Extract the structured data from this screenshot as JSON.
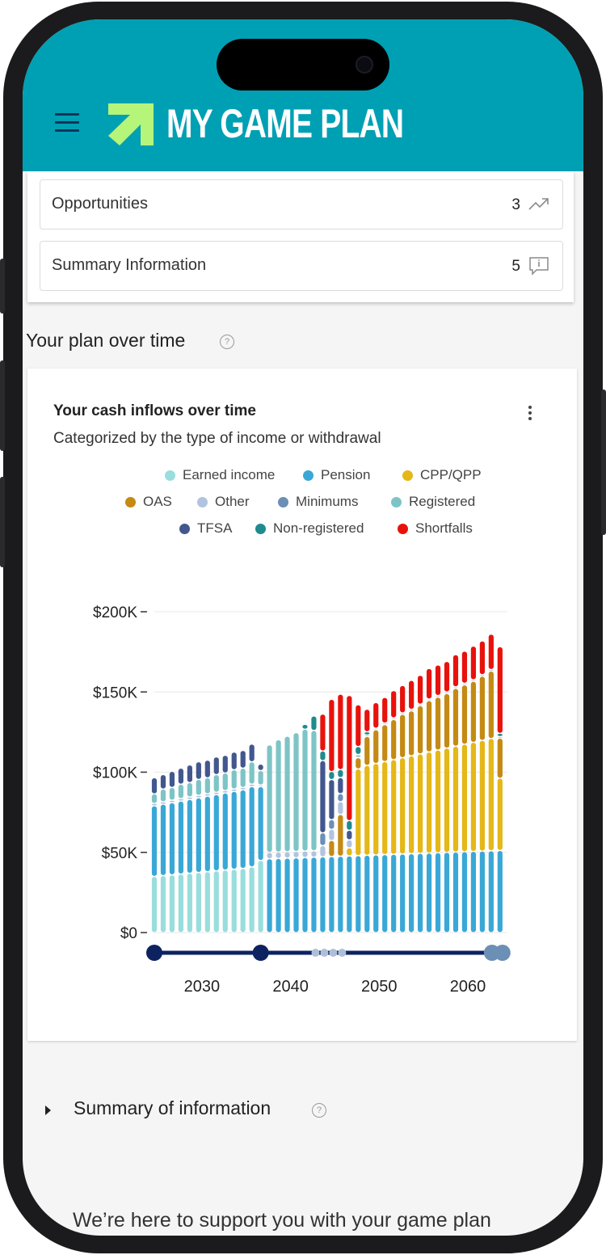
{
  "app": {
    "title": "MY GAME PLAN"
  },
  "top_card": {
    "rows": [
      {
        "label": "Opportunities",
        "count": "3",
        "icon": "trend-up-icon"
      },
      {
        "label": "Summary Information",
        "count": "5",
        "icon": "info-comment-icon"
      }
    ]
  },
  "plan": {
    "title": "Your plan over time"
  },
  "chart_card": {
    "title": "Your cash inflows over time",
    "subtitle": "Categorized by the type of income or withdrawal"
  },
  "colors": {
    "header": "#00a0b4",
    "logo_arrow": "#b5f57a",
    "earned": "#9adddd",
    "pension": "#3aa8d6",
    "cpp": "#e5b717",
    "oas": "#c48a13",
    "other": "#b1c4df",
    "minimums": "#6c8fb5",
    "registered": "#7ec4c6",
    "tfsa": "#43578f",
    "nonregistered": "#1f8b8e",
    "shortfalls": "#e8120c",
    "timeline": "#0d2360"
  },
  "chart_data": {
    "type": "bar",
    "stacked": true,
    "title": "Your cash inflows over time",
    "subtitle": "Categorized by the type of income or withdrawal",
    "xlabel": "",
    "ylabel": "",
    "x_ticks": [
      "2030",
      "2040",
      "2050",
      "2060"
    ],
    "y_ticks": [
      "$0",
      "$50K",
      "$100K",
      "$150K",
      "$200K"
    ],
    "ylim": [
      0,
      200000
    ],
    "grid": true,
    "legend_position": "top",
    "legend": [
      "Earned income",
      "Pension",
      "CPP/QPP",
      "OAS",
      "Other",
      "Minimums",
      "Registered",
      "TFSA",
      "Non-registered",
      "Shortfalls"
    ],
    "years": [
      2026,
      2027,
      2028,
      2029,
      2030,
      2031,
      2032,
      2033,
      2034,
      2035,
      2036,
      2037,
      2038,
      2039,
      2040,
      2041,
      2042,
      2043,
      2044,
      2045,
      2046,
      2047,
      2048,
      2049,
      2050,
      2051,
      2052,
      2053,
      2054,
      2055,
      2056,
      2057,
      2058,
      2059,
      2060,
      2061,
      2062,
      2063,
      2064,
      2065
    ],
    "series": [
      {
        "name": "Earned income",
        "values": [
          35000,
          35500,
          36000,
          36500,
          37000,
          37500,
          38000,
          38500,
          39000,
          39500,
          40000,
          41000,
          45000,
          0,
          0,
          0,
          0,
          0,
          0,
          0,
          0,
          0,
          0,
          0,
          0,
          0,
          0,
          0,
          0,
          0,
          0,
          0,
          0,
          0,
          0,
          0,
          0,
          0,
          0,
          0
        ]
      },
      {
        "name": "Pension",
        "values": [
          44000,
          44500,
          45000,
          45500,
          46000,
          46500,
          47000,
          47500,
          48000,
          48500,
          49000,
          50000,
          46000,
          46000,
          46200,
          46400,
          46600,
          46800,
          47000,
          47200,
          47400,
          47600,
          47800,
          48000,
          48200,
          48400,
          48600,
          48800,
          49000,
          49200,
          49400,
          49600,
          49800,
          50000,
          50200,
          50400,
          50600,
          50800,
          51000,
          51200
        ]
      },
      {
        "name": "CPP/QPP",
        "values": [
          0,
          0,
          0,
          0,
          0,
          0,
          0,
          0,
          0,
          0,
          0,
          0,
          0,
          0,
          0,
          0,
          0,
          0,
          0,
          0,
          0,
          0,
          5000,
          54000,
          56000,
          57000,
          58000,
          59000,
          60000,
          61000,
          62000,
          63000,
          64000,
          65000,
          66000,
          67000,
          68000,
          69000,
          70000,
          45000
        ]
      },
      {
        "name": "OAS",
        "values": [
          0,
          0,
          0,
          0,
          0,
          0,
          0,
          0,
          0,
          0,
          0,
          0,
          0,
          0,
          0,
          0,
          0,
          0,
          0,
          0,
          10000,
          26000,
          0,
          7000,
          18000,
          21000,
          23000,
          25000,
          27000,
          28000,
          30000,
          32000,
          33000,
          34000,
          36000,
          37000,
          38000,
          40000,
          42000,
          25000
        ]
      },
      {
        "name": "Other",
        "values": [
          1500,
          1500,
          1500,
          1500,
          1500,
          1500,
          1500,
          1500,
          1500,
          1500,
          1500,
          1500,
          1000,
          4000,
          4000,
          4000,
          4000,
          4000,
          4000,
          7000,
          7000,
          8000,
          5000,
          2000,
          1000,
          1000,
          1000,
          1000,
          1000,
          1000,
          1000,
          1000,
          1000,
          1000,
          1000,
          1000,
          1000,
          1000,
          1000,
          1000
        ]
      },
      {
        "name": "Minimums",
        "values": [
          0,
          0,
          0,
          0,
          0,
          0,
          0,
          0,
          0,
          0,
          0,
          0,
          0,
          0,
          0,
          0,
          0,
          0,
          0,
          8000,
          6000,
          5000,
          0,
          0,
          0,
          0,
          0,
          0,
          0,
          0,
          0,
          0,
          0,
          0,
          0,
          0,
          0,
          0,
          0,
          0
        ]
      },
      {
        "name": "Registered",
        "values": [
          6000,
          8000,
          8000,
          9000,
          9000,
          10000,
          10000,
          11000,
          11000,
          12000,
          12000,
          14000,
          9000,
          67000,
          70000,
          72000,
          74000,
          76000,
          75000,
          0,
          0,
          0,
          0,
          0,
          0,
          0,
          0,
          0,
          0,
          0,
          0,
          0,
          0,
          0,
          0,
          0,
          0,
          0,
          0,
          0
        ]
      },
      {
        "name": "TFSA",
        "values": [
          10000,
          9000,
          10000,
          10000,
          11000,
          11000,
          11000,
          11000,
          11000,
          11000,
          11000,
          11000,
          4000,
          0,
          0,
          0,
          0,
          0,
          0,
          45000,
          25000,
          10000,
          6000,
          0,
          0,
          0,
          0,
          0,
          0,
          0,
          0,
          0,
          0,
          0,
          0,
          0,
          0,
          0,
          0,
          0
        ]
      },
      {
        "name": "Non-registered",
        "values": [
          0,
          0,
          0,
          0,
          0,
          0,
          0,
          0,
          0,
          0,
          0,
          0,
          0,
          0,
          0,
          0,
          0,
          3000,
          9000,
          6000,
          5000,
          5000,
          6000,
          5000,
          2000,
          0,
          0,
          0,
          0,
          0,
          0,
          0,
          0,
          0,
          0,
          0,
          0,
          0,
          0,
          2000
        ]
      },
      {
        "name": "Shortfalls",
        "values": [
          0,
          0,
          0,
          0,
          0,
          0,
          0,
          0,
          0,
          0,
          0,
          0,
          0,
          0,
          0,
          0,
          0,
          0,
          0,
          23000,
          45000,
          47000,
          78000,
          26000,
          14000,
          16000,
          16000,
          17000,
          17000,
          18000,
          18000,
          19000,
          19000,
          19000,
          20000,
          20000,
          21000,
          21000,
          22000,
          54000
        ]
      }
    ]
  }
}
